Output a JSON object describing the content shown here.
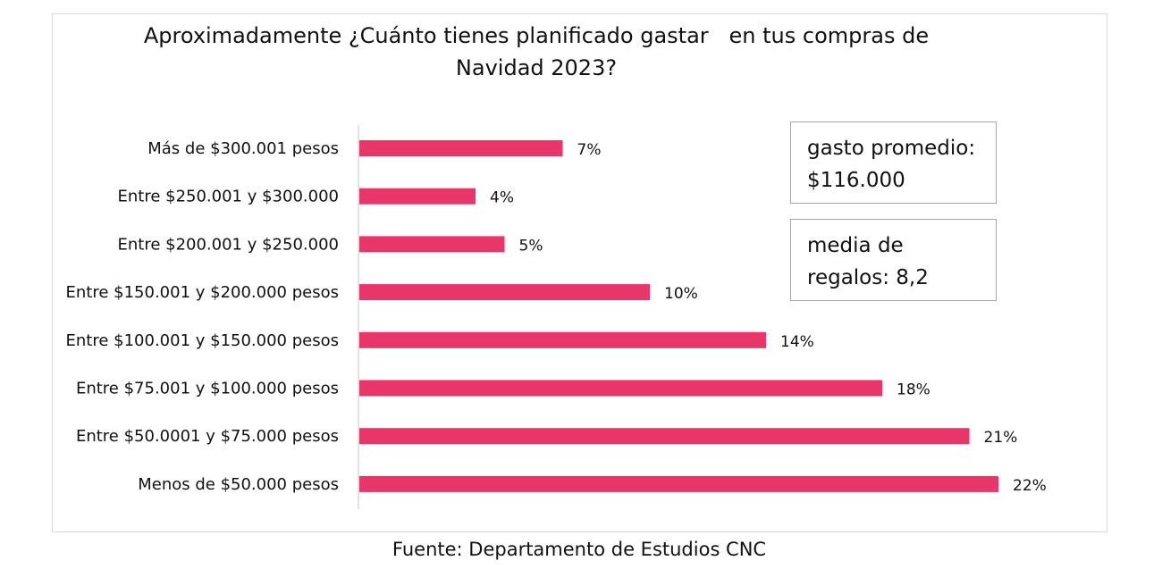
{
  "chart_data": {
    "type": "bar",
    "orientation": "horizontal",
    "title": "Aproximadamente ¿Cuánto tienes planificado gastar   en tus compras de\nNavidad 2023?",
    "categories": [
      "Más de $300.001 pesos",
      "Entre $250.001 y $300.000",
      "Entre $200.001 y $250.000",
      "Entre $150.001 y $200.000 pesos",
      "Entre $100.001 y $150.000 pesos",
      "Entre $75.001 y $100.000 pesos",
      "Entre $50.0001 y $75.000 pesos",
      "Menos de $50.000 pesos"
    ],
    "values": [
      7,
      4,
      5,
      10,
      14,
      18,
      21,
      22
    ],
    "value_labels": [
      "7%",
      "4%",
      "5%",
      "10%",
      "14%",
      "18%",
      "21%",
      "22%"
    ],
    "unit": "%",
    "xlim": [
      0,
      22
    ],
    "bar_color": "#e8366b",
    "axis_color": "#d9d9d9",
    "grid": false,
    "legend": "none",
    "annotations": [
      "gasto promedio:\n$116.000",
      "media de\nregalos: 8,2"
    ]
  },
  "source": "Fuente: Departamento de Estudios CNC"
}
